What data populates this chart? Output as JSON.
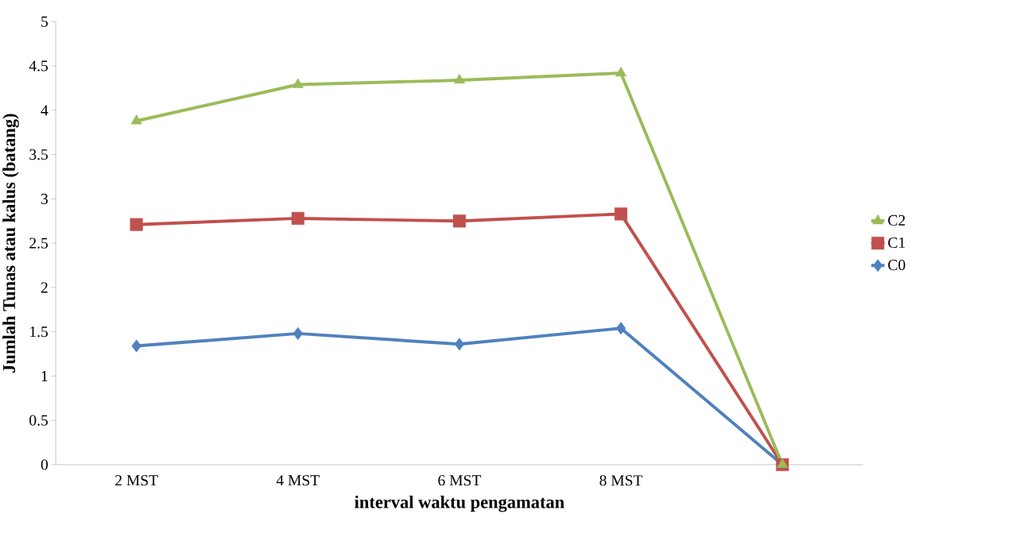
{
  "chart_data": {
    "type": "line",
    "xlabel": "interval waktu pengamatan",
    "ylabel": "Jumlah Tunas atau kalus (batang)",
    "categories": [
      "2 MST",
      "4 MST",
      "6 MST",
      "8 MST",
      null
    ],
    "series": [
      {
        "name": "C0",
        "color": "#4f81bd",
        "marker": "diamond",
        "values": [
          1.34,
          1.48,
          1.36,
          1.54,
          0
        ]
      },
      {
        "name": "C1",
        "color": "#c0504d",
        "marker": "square",
        "values": [
          2.71,
          2.78,
          2.75,
          2.83,
          0
        ]
      },
      {
        "name": "C2",
        "color": "#9bbb59",
        "marker": "triangle",
        "values": [
          3.88,
          4.29,
          4.34,
          4.42,
          0
        ]
      }
    ],
    "ylim": [
      0,
      5
    ],
    "yticks": [
      0,
      0.5,
      1,
      1.5,
      2,
      2.5,
      3,
      3.5,
      4,
      4.5,
      5
    ],
    "grid": false,
    "legend": "right",
    "line_style": "solid"
  }
}
